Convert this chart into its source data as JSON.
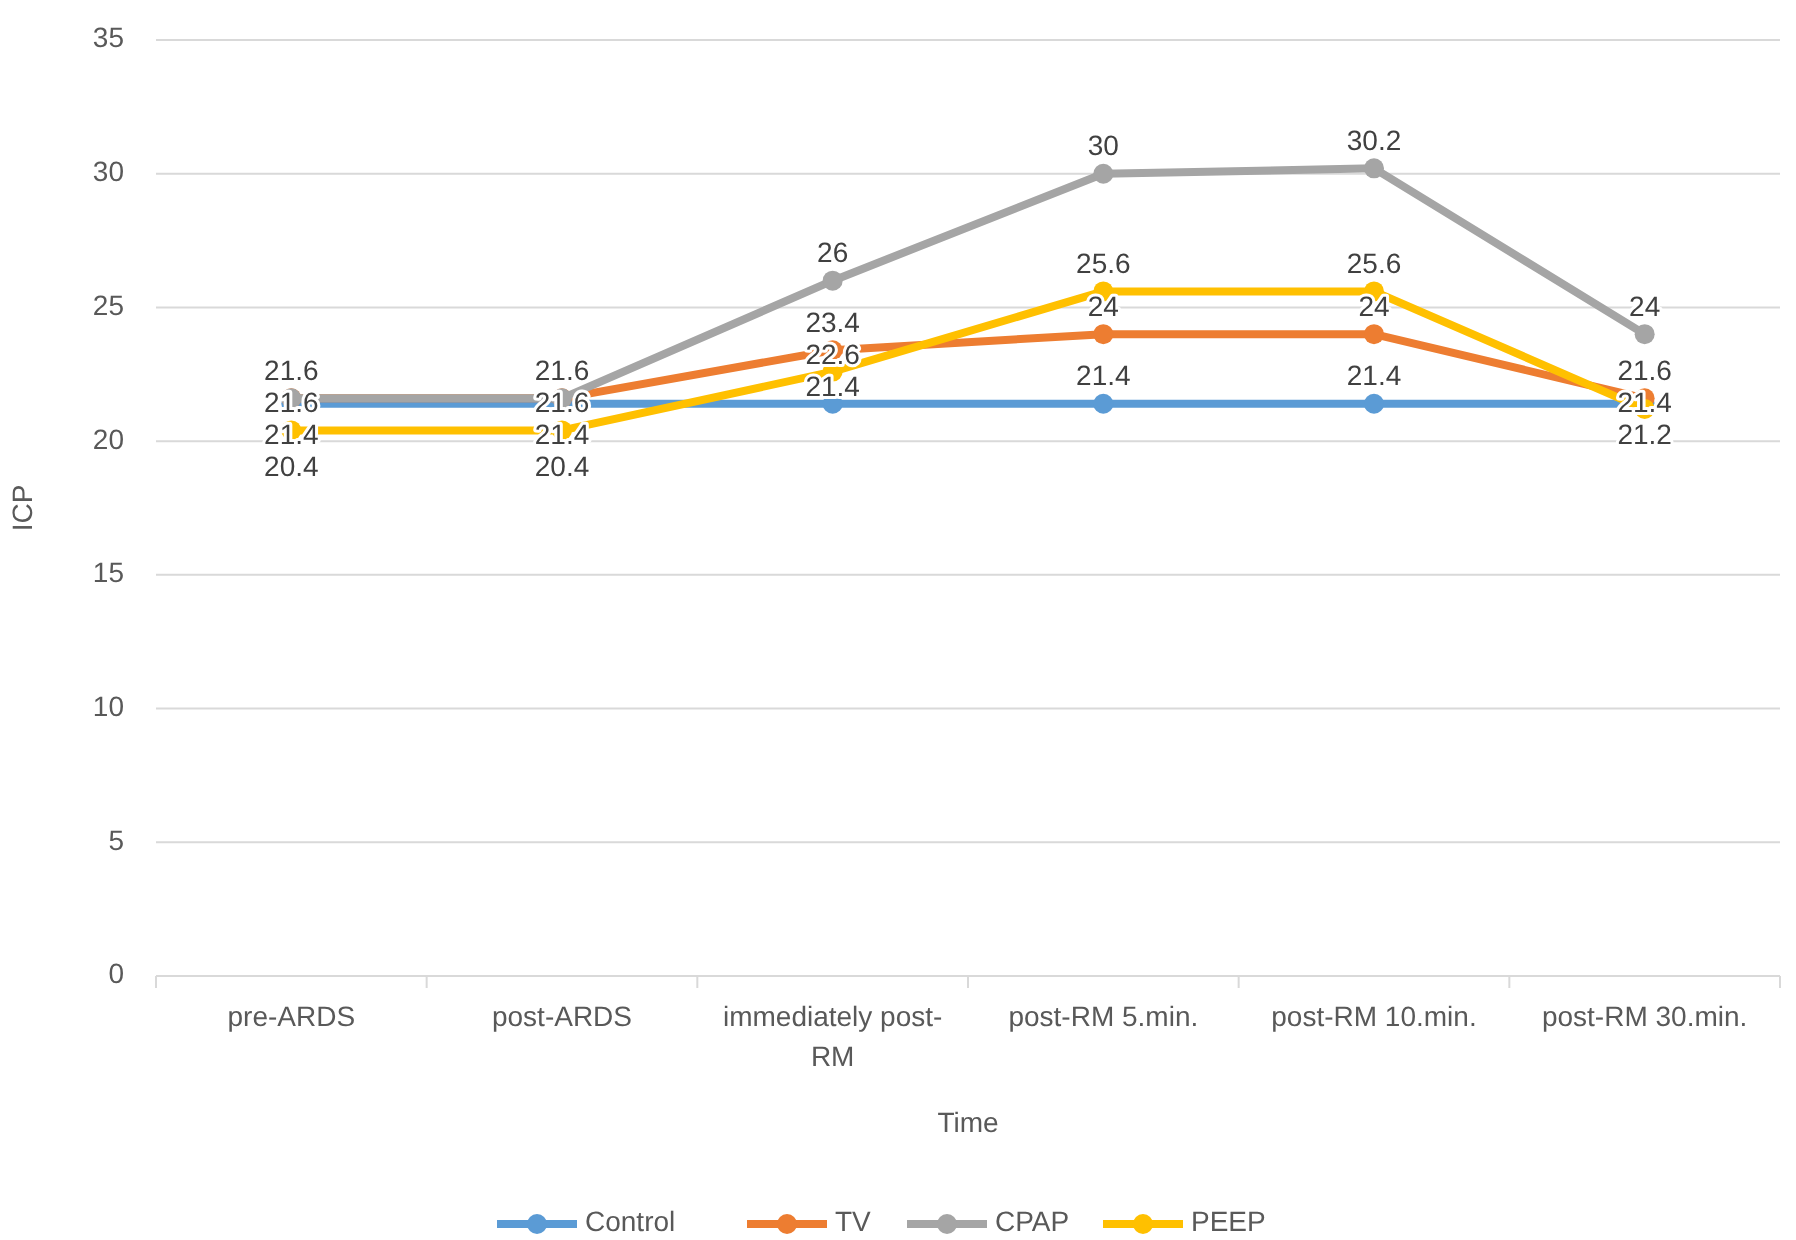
{
  "chart_data": {
    "type": "line",
    "xlabel": "Time",
    "ylabel": "ICP",
    "categories": [
      "pre-ARDS",
      "post-ARDS",
      "immediately post-RM",
      "post-RM 5.min.",
      "post-RM 10.min.",
      "post-RM 30.min."
    ],
    "series": [
      {
        "name": "Control",
        "color": "#5b9bd5",
        "values": [
          21.4,
          21.4,
          21.4,
          21.4,
          21.4,
          21.4
        ]
      },
      {
        "name": "TV",
        "color": "#ed7d31",
        "values": [
          21.6,
          21.6,
          23.4,
          24,
          24,
          21.6
        ]
      },
      {
        "name": "CPAP",
        "color": "#a5a5a5",
        "values": [
          21.6,
          21.6,
          26,
          30,
          30.2,
          24
        ]
      },
      {
        "name": "PEEP",
        "color": "#ffc000",
        "values": [
          20.4,
          20.4,
          22.6,
          25.6,
          25.6,
          21.2
        ]
      }
    ],
    "ylim": [
      0,
      35
    ],
    "yticks": [
      0,
      5,
      10,
      15,
      20,
      25,
      30,
      35
    ],
    "grid": "y",
    "legend": "bottom",
    "marker": "circle",
    "line_style": "solid",
    "data_labels": true
  }
}
